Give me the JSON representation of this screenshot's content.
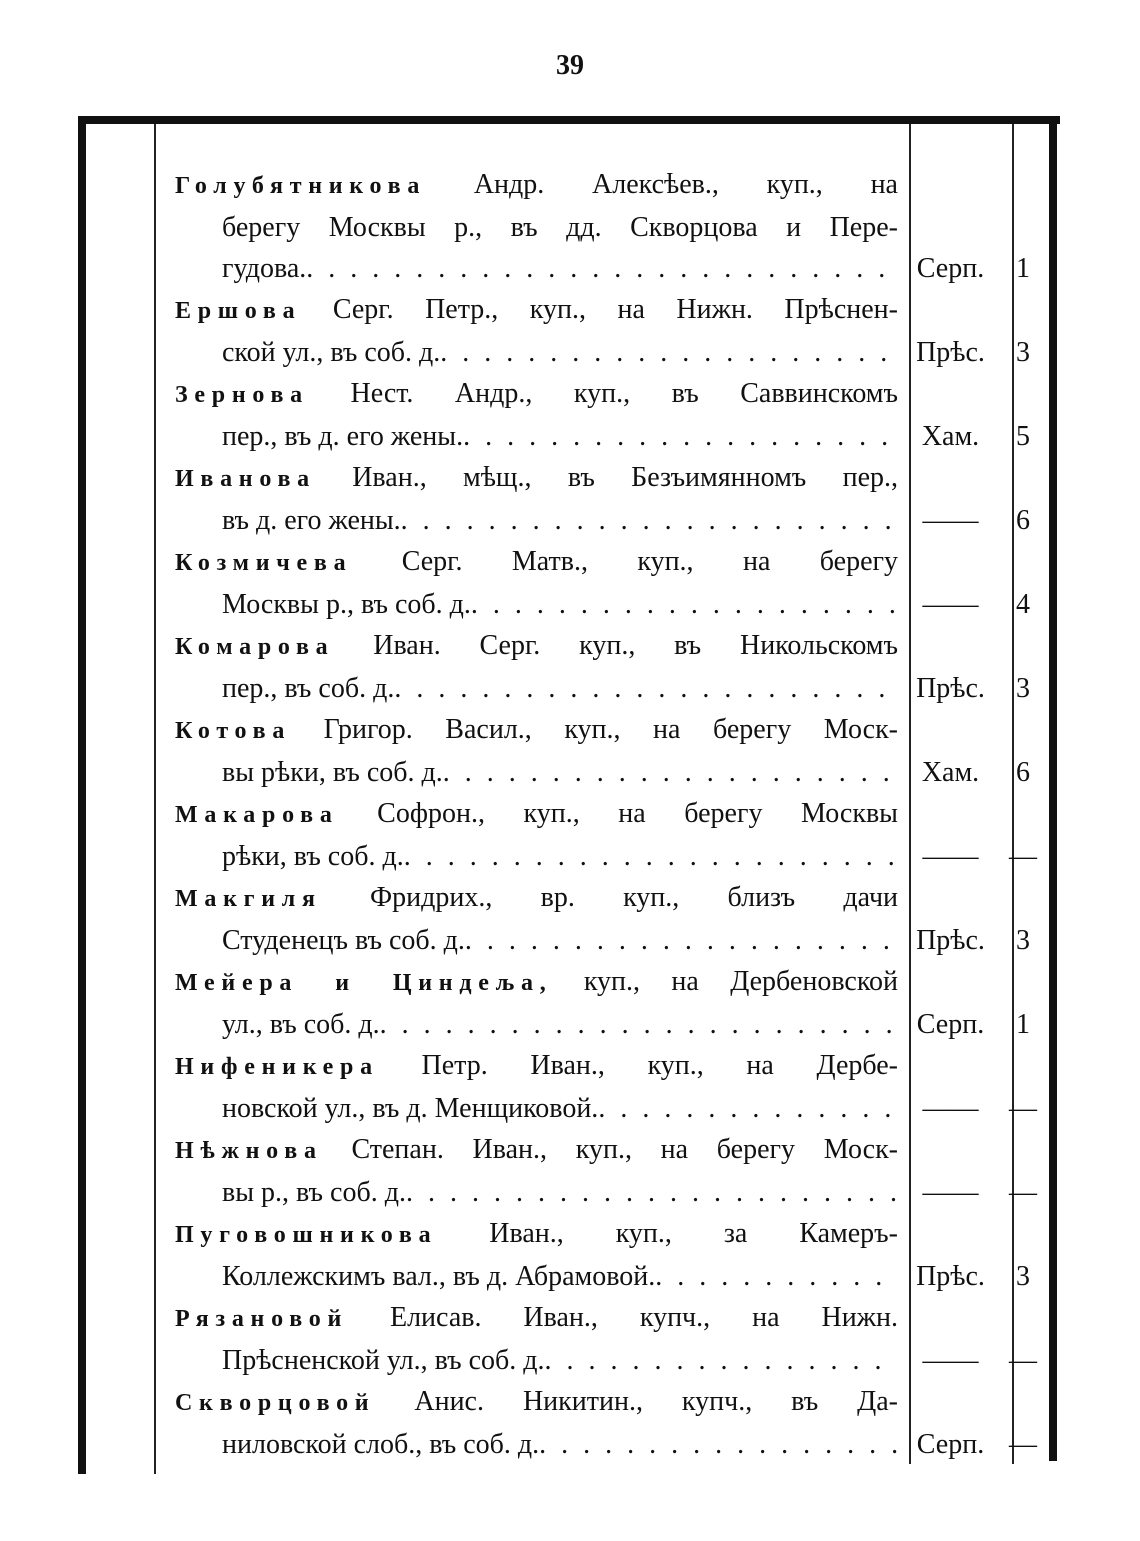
{
  "page_number": "39",
  "entries": [
    {
      "surname": "Голубятникова",
      "first": "Андр. Алексѣев., куп., на",
      "lines": [
        "берегу Москвы р., въ дд. Скворцова и Пере-",
        "гудова."
      ],
      "district": "Серп.",
      "number": "1"
    },
    {
      "surname": "Ершова",
      "first": "Серг. Петр., куп., на Нижн. Прѣснен-",
      "lines": [
        "ской ул., въ соб. д."
      ],
      "district": "Прѣс.",
      "number": "3"
    },
    {
      "surname": "Зернова",
      "first": "Нест. Андр., куп., въ Саввинскомъ",
      "lines": [
        "пер., въ д. его жены."
      ],
      "district": "Хам.",
      "number": "5"
    },
    {
      "surname": "Иванова",
      "first": "Иван., мѣщ., въ Безъимянномъ пер.,",
      "lines": [
        "въ д. его жены."
      ],
      "district": "——",
      "number": "6"
    },
    {
      "surname": "Козмичева",
      "first": "Серг. Матв., куп., на берегу",
      "lines": [
        "Москвы р., въ соб. д."
      ],
      "district": "——",
      "number": "4"
    },
    {
      "surname": "Комарова",
      "first": "Иван. Серг. куп., въ Никольскомъ",
      "lines": [
        "пер., въ соб. д."
      ],
      "district": "Прѣс.",
      "number": "3"
    },
    {
      "surname": "Котова",
      "first": "Григор. Васил., куп., на берегу Моск-",
      "lines": [
        "вы рѣки, въ соб. д."
      ],
      "district": "Хам.",
      "number": "6"
    },
    {
      "surname": "Макарова",
      "first": "Софрон., куп., на берегу Москвы",
      "lines": [
        "рѣки, въ соб. д."
      ],
      "district": "——",
      "number": "—"
    },
    {
      "surname": "Макгиля",
      "first": "Фридрих., вр. куп., близъ дачи",
      "lines": [
        "Студенецъ въ соб. д."
      ],
      "district": "Прѣс.",
      "number": "3"
    },
    {
      "surname": "Мейера и Циндеља,",
      "first": "куп., на Дербеновской",
      "lines": [
        "ул., въ соб. д."
      ],
      "district": "Серп.",
      "number": "1"
    },
    {
      "surname": "Нифеникера",
      "first": "Петр. Иван., куп., на Дербе-",
      "lines": [
        "новской ул., въ д. Менщиковой."
      ],
      "district": "——",
      "number": "—"
    },
    {
      "surname": "Нѣжнова",
      "first": "Степан. Иван., куп., на берегу Моск-",
      "lines": [
        "вы р., въ соб. д."
      ],
      "district": "——",
      "number": "—"
    },
    {
      "surname": "Пуговошникова",
      "first": "Иван., куп., за Камеръ-",
      "lines": [
        "Коллежскимъ вал., въ д. Абрамовой."
      ],
      "district": "Прѣс.",
      "number": "3"
    },
    {
      "surname": "Рязановой",
      "first": "Елисав. Иван., купч., на Нижн.",
      "lines": [
        "Прѣсненской ул., въ соб. д."
      ],
      "district": "——",
      "number": "—"
    },
    {
      "surname": "Скворцовой",
      "first": "Анис. Никитин., купч., въ Да-",
      "lines": [
        "ниловской слоб., въ соб. д."
      ],
      "district": "Серп.",
      "number": "—"
    }
  ]
}
